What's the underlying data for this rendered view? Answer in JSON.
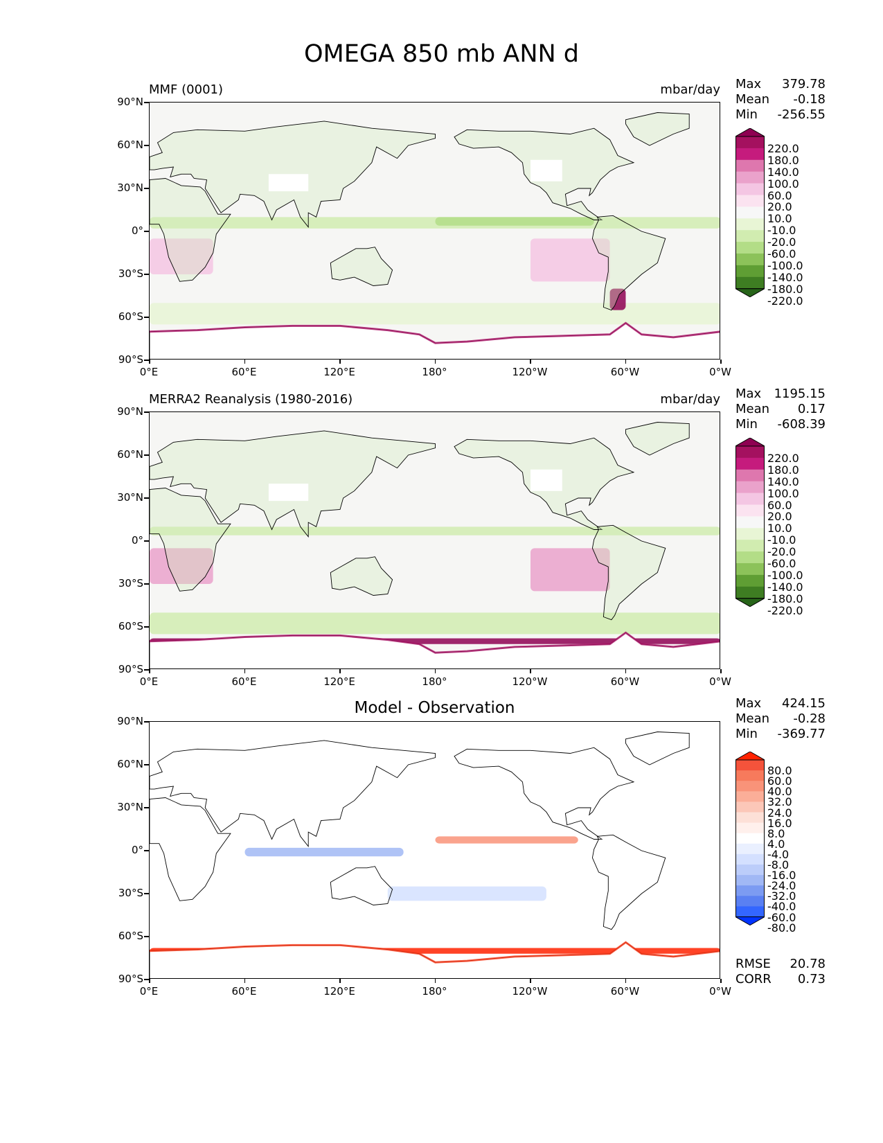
{
  "suptitle": "OMEGA 850 mb ANN d",
  "y_ticks": [
    "90°N",
    "60°N",
    "30°N",
    "0°",
    "30°S",
    "60°S",
    "90°S"
  ],
  "x_ticks": [
    "0°E",
    "60°E",
    "120°E",
    "180°",
    "120°W",
    "60°W",
    "0°W"
  ],
  "panels": [
    {
      "title_left": "MMF (0001)",
      "title_right": "mbar/day",
      "title_center": "",
      "stats": {
        "max_label": "Max",
        "max": "379.78",
        "mean_label": "Mean",
        "mean": "-0.18",
        "min_label": "Min",
        "min": "-256.55"
      },
      "colorbar": {
        "levels": [
          "220.0",
          "180.0",
          "140.0",
          "100.0",
          "60.0",
          "20.0",
          "10.0",
          "-10.0",
          "-20.0",
          "-60.0",
          "-100.0",
          "-140.0",
          "-180.0",
          "-220.0"
        ],
        "colors": [
          "#8e0152",
          "#a4115f",
          "#c51b7d",
          "#de77ae",
          "#eaa2cb",
          "#f4c6e3",
          "#fbe3f0",
          "#f7f7f7",
          "#e8f5d5",
          "#d1ecb0",
          "#b3dd87",
          "#8cc25a",
          "#5f9e34",
          "#3e7d22",
          "#276419"
        ]
      }
    },
    {
      "title_left": "MERRA2 Reanalysis (1980-2016)",
      "title_right": "mbar/day",
      "title_center": "",
      "stats": {
        "max_label": "Max",
        "max": "1195.15",
        "mean_label": "Mean",
        "mean": "0.17",
        "min_label": "Min",
        "min": "-608.39"
      },
      "colorbar": {
        "levels": [
          "220.0",
          "180.0",
          "140.0",
          "100.0",
          "60.0",
          "20.0",
          "10.0",
          "-10.0",
          "-20.0",
          "-60.0",
          "-100.0",
          "-140.0",
          "-180.0",
          "-220.0"
        ],
        "colors": [
          "#8e0152",
          "#a4115f",
          "#c51b7d",
          "#de77ae",
          "#eaa2cb",
          "#f4c6e3",
          "#fbe3f0",
          "#f7f7f7",
          "#e8f5d5",
          "#d1ecb0",
          "#b3dd87",
          "#8cc25a",
          "#5f9e34",
          "#3e7d22",
          "#276419"
        ]
      }
    },
    {
      "title_left": "",
      "title_right": "",
      "title_center": "Model - Observation",
      "stats": {
        "max_label": "Max",
        "max": "424.15",
        "mean_label": "Mean",
        "mean": "-0.28",
        "min_label": "Min",
        "min": "-369.77"
      },
      "extra": {
        "rmse_label": "RMSE",
        "rmse": "20.78",
        "corr_label": "CORR",
        "corr": "0.73"
      },
      "colorbar": {
        "levels": [
          "80.0",
          "60.0",
          "40.0",
          "32.0",
          "24.0",
          "16.0",
          "8.0",
          "4.0",
          "-4.0",
          "-8.0",
          "-16.0",
          "-24.0",
          "-32.0",
          "-40.0",
          "-60.0",
          "-80.0"
        ],
        "colors": [
          "#ff2200",
          "#f4533b",
          "#f77a5c",
          "#f99379",
          "#fbae98",
          "#fcc7b8",
          "#fde0d7",
          "#fff0ec",
          "#ffffff",
          "#eaf0ff",
          "#d4e0ff",
          "#bccdfa",
          "#a1b8f5",
          "#7c9bf2",
          "#5a80f2",
          "#3366ff",
          "#0033ff"
        ]
      }
    }
  ],
  "chart_data": [
    {
      "type": "heatmap",
      "title": "MMF (0001)",
      "units": "mbar/day",
      "xlim": [
        0,
        360
      ],
      "ylim": [
        -90,
        90
      ],
      "stats": {
        "max": 379.78,
        "mean": -0.18,
        "min": -256.55
      },
      "contour_levels": [
        -220,
        -180,
        -140,
        -100,
        -60,
        -20,
        -10,
        10,
        20,
        60,
        100,
        140,
        180,
        220
      ],
      "features": [
        {
          "lon": [
            0,
            360
          ],
          "lat": [
            2,
            10
          ],
          "value": -40
        },
        {
          "lon": [
            180,
            280
          ],
          "lat": [
            4,
            10
          ],
          "value": -100
        },
        {
          "lon": [
            0,
            360
          ],
          "lat": [
            -65,
            -50
          ],
          "value": -20
        },
        {
          "lon": [
            0,
            40
          ],
          "lat": [
            -30,
            -5
          ],
          "value": 20
        },
        {
          "lon": [
            240,
            290
          ],
          "lat": [
            -35,
            -5
          ],
          "value": 20
        },
        {
          "lon": [
            290,
            300
          ],
          "lat": [
            -55,
            -40
          ],
          "value": 220
        }
      ]
    },
    {
      "type": "heatmap",
      "title": "MERRA2 Reanalysis (1980-2016)",
      "units": "mbar/day",
      "xlim": [
        0,
        360
      ],
      "ylim": [
        -90,
        90
      ],
      "stats": {
        "max": 1195.15,
        "mean": 0.17,
        "min": -608.39
      },
      "contour_levels": [
        -220,
        -180,
        -140,
        -100,
        -60,
        -20,
        -10,
        10,
        20,
        60,
        100,
        140,
        180,
        220
      ],
      "features": [
        {
          "lon": [
            0,
            360
          ],
          "lat": [
            4,
            10
          ],
          "value": -60
        },
        {
          "lon": [
            0,
            360
          ],
          "lat": [
            -65,
            -50
          ],
          "value": -60
        },
        {
          "lon": [
            0,
            40
          ],
          "lat": [
            -30,
            -5
          ],
          "value": 60
        },
        {
          "lon": [
            240,
            290
          ],
          "lat": [
            -35,
            -5
          ],
          "value": 60
        },
        {
          "lon": [
            0,
            360
          ],
          "lat": [
            -72,
            -68
          ],
          "value": 220
        }
      ]
    },
    {
      "type": "heatmap",
      "title": "Model - Observation",
      "xlim": [
        0,
        360
      ],
      "ylim": [
        -90,
        90
      ],
      "stats": {
        "max": 424.15,
        "mean": -0.28,
        "min": -369.77,
        "rmse": 20.78,
        "corr": 0.73
      },
      "contour_levels": [
        -80,
        -60,
        -40,
        -32,
        -24,
        -16,
        -8,
        -4,
        4,
        8,
        16,
        24,
        32,
        40,
        60,
        80
      ],
      "features": [
        {
          "lon": [
            180,
            270
          ],
          "lat": [
            5,
            10
          ],
          "value": 32
        },
        {
          "lon": [
            60,
            160
          ],
          "lat": [
            -4,
            2
          ],
          "value": -32
        },
        {
          "lon": [
            0,
            360
          ],
          "lat": [
            -72,
            -68
          ],
          "value": 80
        },
        {
          "lon": [
            150,
            250
          ],
          "lat": [
            -35,
            -25
          ],
          "value": -16
        }
      ]
    }
  ]
}
